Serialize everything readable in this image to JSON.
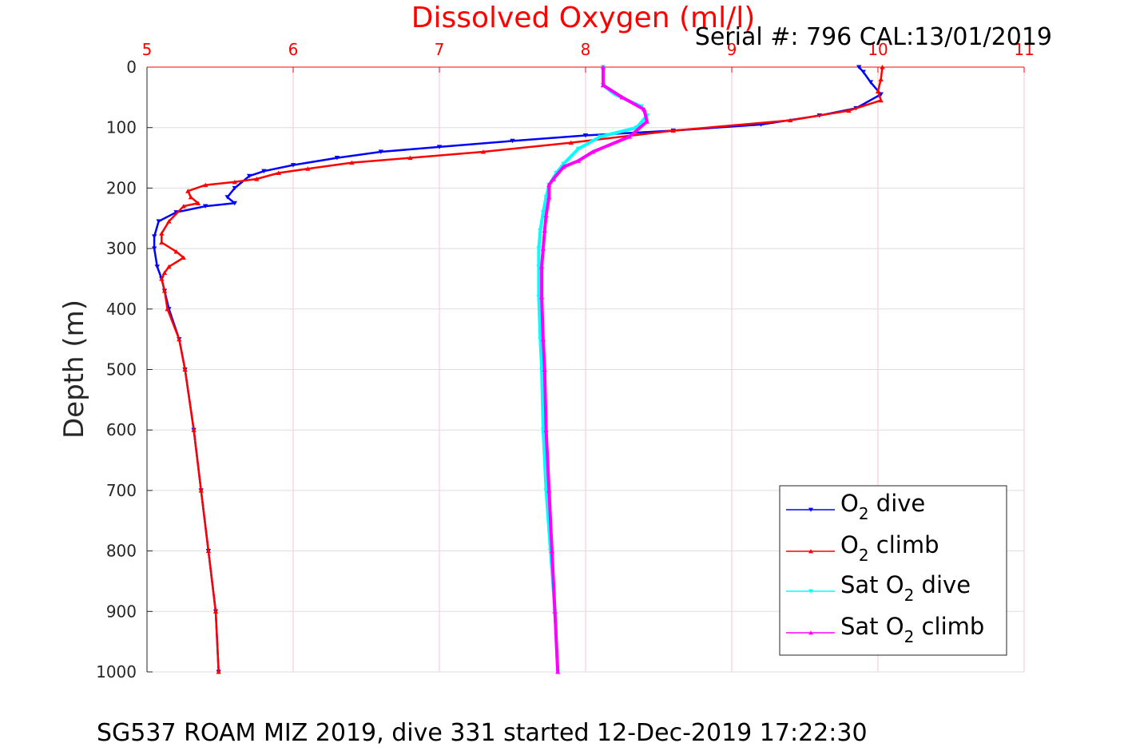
{
  "chart_data": {
    "type": "line",
    "title": "Dissolved Oxygen (ml/l)",
    "serial": "Serial #: 796  CAL:13/01/2019",
    "footer": "SG537 ROAM MIZ 2019, dive 331 started 12-Dec-2019 17:22:30",
    "xlabel": "",
    "ylabel": "Depth (m)",
    "xlim": [
      5,
      11
    ],
    "ylim": [
      0,
      1000
    ],
    "y_reversed": true,
    "x_axis_position": "top",
    "grid": true,
    "x_ticks": [
      "5",
      "6",
      "7",
      "8",
      "9",
      "10",
      "11"
    ],
    "y_ticks": [
      "0",
      "100",
      "200",
      "300",
      "400",
      "500",
      "600",
      "700",
      "800",
      "900",
      "1000"
    ],
    "legend_position": "bottom-right",
    "legend": [
      {
        "pre": "O",
        "sub": "2",
        "post": " dive"
      },
      {
        "pre": "O",
        "sub": "2",
        "post": " climb"
      },
      {
        "pre": "Sat O",
        "sub": "2",
        "post": " dive"
      },
      {
        "pre": "Sat O",
        "sub": "2",
        "post": " climb"
      }
    ],
    "series": [
      {
        "color": "#0000ff",
        "marker": "triangle-down",
        "points": [
          [
            9.87,
            0
          ],
          [
            9.9,
            8
          ],
          [
            9.95,
            25
          ],
          [
            10.02,
            45
          ],
          [
            9.85,
            68
          ],
          [
            9.6,
            80
          ],
          [
            9.2,
            95
          ],
          [
            8.6,
            105
          ],
          [
            8.0,
            113
          ],
          [
            7.5,
            122
          ],
          [
            7.0,
            132
          ],
          [
            6.6,
            140
          ],
          [
            6.3,
            150
          ],
          [
            6.0,
            162
          ],
          [
            5.8,
            172
          ],
          [
            5.7,
            180
          ],
          [
            5.6,
            200
          ],
          [
            5.55,
            215
          ],
          [
            5.6,
            225
          ],
          [
            5.4,
            230
          ],
          [
            5.2,
            240
          ],
          [
            5.08,
            255
          ],
          [
            5.05,
            280
          ],
          [
            5.05,
            300
          ],
          [
            5.07,
            330
          ],
          [
            5.1,
            350
          ],
          [
            5.12,
            370
          ],
          [
            5.15,
            400
          ],
          [
            5.22,
            450
          ],
          [
            5.26,
            500
          ],
          [
            5.32,
            600
          ],
          [
            5.37,
            700
          ],
          [
            5.42,
            800
          ],
          [
            5.47,
            900
          ],
          [
            5.49,
            1000
          ]
        ]
      },
      {
        "color": "#ff0000",
        "marker": "triangle-up",
        "points": [
          [
            10.03,
            0
          ],
          [
            10.02,
            20
          ],
          [
            10.0,
            40
          ],
          [
            10.02,
            55
          ],
          [
            9.8,
            72
          ],
          [
            9.4,
            88
          ],
          [
            8.6,
            105
          ],
          [
            7.9,
            125
          ],
          [
            7.3,
            140
          ],
          [
            6.8,
            150
          ],
          [
            6.4,
            158
          ],
          [
            6.1,
            168
          ],
          [
            5.9,
            175
          ],
          [
            5.75,
            185
          ],
          [
            5.6,
            190
          ],
          [
            5.4,
            195
          ],
          [
            5.28,
            205
          ],
          [
            5.3,
            215
          ],
          [
            5.35,
            225
          ],
          [
            5.25,
            230
          ],
          [
            5.15,
            255
          ],
          [
            5.1,
            275
          ],
          [
            5.1,
            290
          ],
          [
            5.2,
            305
          ],
          [
            5.25,
            315
          ],
          [
            5.15,
            330
          ],
          [
            5.12,
            340
          ],
          [
            5.1,
            350
          ],
          [
            5.12,
            370
          ],
          [
            5.14,
            400
          ],
          [
            5.22,
            450
          ],
          [
            5.26,
            500
          ],
          [
            5.32,
            600
          ],
          [
            5.37,
            700
          ],
          [
            5.42,
            800
          ],
          [
            5.47,
            900
          ],
          [
            5.49,
            1000
          ]
        ]
      },
      {
        "color": "#00ffff",
        "marker": "triangle-down",
        "points": [
          [
            8.12,
            0
          ],
          [
            8.12,
            30
          ],
          [
            8.2,
            45
          ],
          [
            8.38,
            65
          ],
          [
            8.42,
            80
          ],
          [
            8.35,
            100
          ],
          [
            8.1,
            115
          ],
          [
            7.95,
            135
          ],
          [
            7.85,
            160
          ],
          [
            7.8,
            175
          ],
          [
            7.75,
            195
          ],
          [
            7.73,
            215
          ],
          [
            7.71,
            240
          ],
          [
            7.69,
            270
          ],
          [
            7.68,
            300
          ],
          [
            7.68,
            330
          ],
          [
            7.68,
            380
          ],
          [
            7.69,
            450
          ],
          [
            7.7,
            500
          ],
          [
            7.71,
            600
          ],
          [
            7.73,
            700
          ],
          [
            7.76,
            800
          ],
          [
            7.79,
            900
          ],
          [
            7.81,
            1000
          ]
        ]
      },
      {
        "color": "#ff00ff",
        "marker": "triangle-up",
        "points": [
          [
            8.12,
            0
          ],
          [
            8.12,
            30
          ],
          [
            8.25,
            50
          ],
          [
            8.4,
            70
          ],
          [
            8.42,
            90
          ],
          [
            8.3,
            115
          ],
          [
            8.05,
            140
          ],
          [
            7.95,
            155
          ],
          [
            7.85,
            165
          ],
          [
            7.78,
            185
          ],
          [
            7.75,
            195
          ],
          [
            7.75,
            215
          ],
          [
            7.73,
            245
          ],
          [
            7.72,
            270
          ],
          [
            7.71,
            300
          ],
          [
            7.7,
            330
          ],
          [
            7.7,
            380
          ],
          [
            7.71,
            450
          ],
          [
            7.72,
            500
          ],
          [
            7.73,
            600
          ],
          [
            7.75,
            700
          ],
          [
            7.77,
            800
          ],
          [
            7.79,
            900
          ],
          [
            7.81,
            1000
          ]
        ]
      }
    ]
  }
}
